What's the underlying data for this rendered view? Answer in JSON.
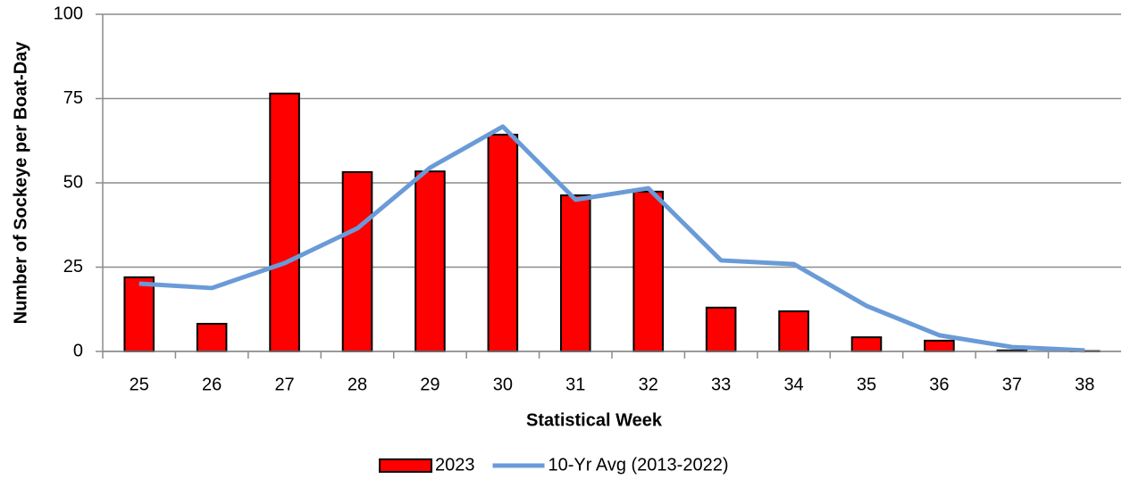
{
  "chart_data": {
    "type": "bar",
    "x_label": "Statistical Week",
    "y_label": "Number of Sockeye per Boat-Day",
    "categories": [
      "25",
      "26",
      "27",
      "28",
      "29",
      "30",
      "31",
      "32",
      "33",
      "34",
      "35",
      "36",
      "37",
      "38"
    ],
    "series": [
      {
        "name": "2023",
        "type": "bar",
        "color": "#ff0000",
        "values": [
          22,
          8.2,
          76.5,
          53.2,
          53.4,
          64.3,
          46.3,
          47.4,
          13,
          11.9,
          4.2,
          3.2,
          0.3,
          0.1
        ]
      },
      {
        "name": "10-Yr Avg (2013-2022)",
        "type": "line",
        "color": "#6a9bd8",
        "values": [
          20.1,
          18.8,
          26.2,
          36.5,
          54.5,
          66.7,
          45,
          48.4,
          27,
          25.9,
          13.5,
          4.8,
          1.3,
          0.3
        ]
      }
    ],
    "ylim": [
      0,
      100
    ],
    "yticks": [
      0,
      25,
      50,
      75,
      100
    ],
    "grid": true,
    "legend": "bottom"
  }
}
